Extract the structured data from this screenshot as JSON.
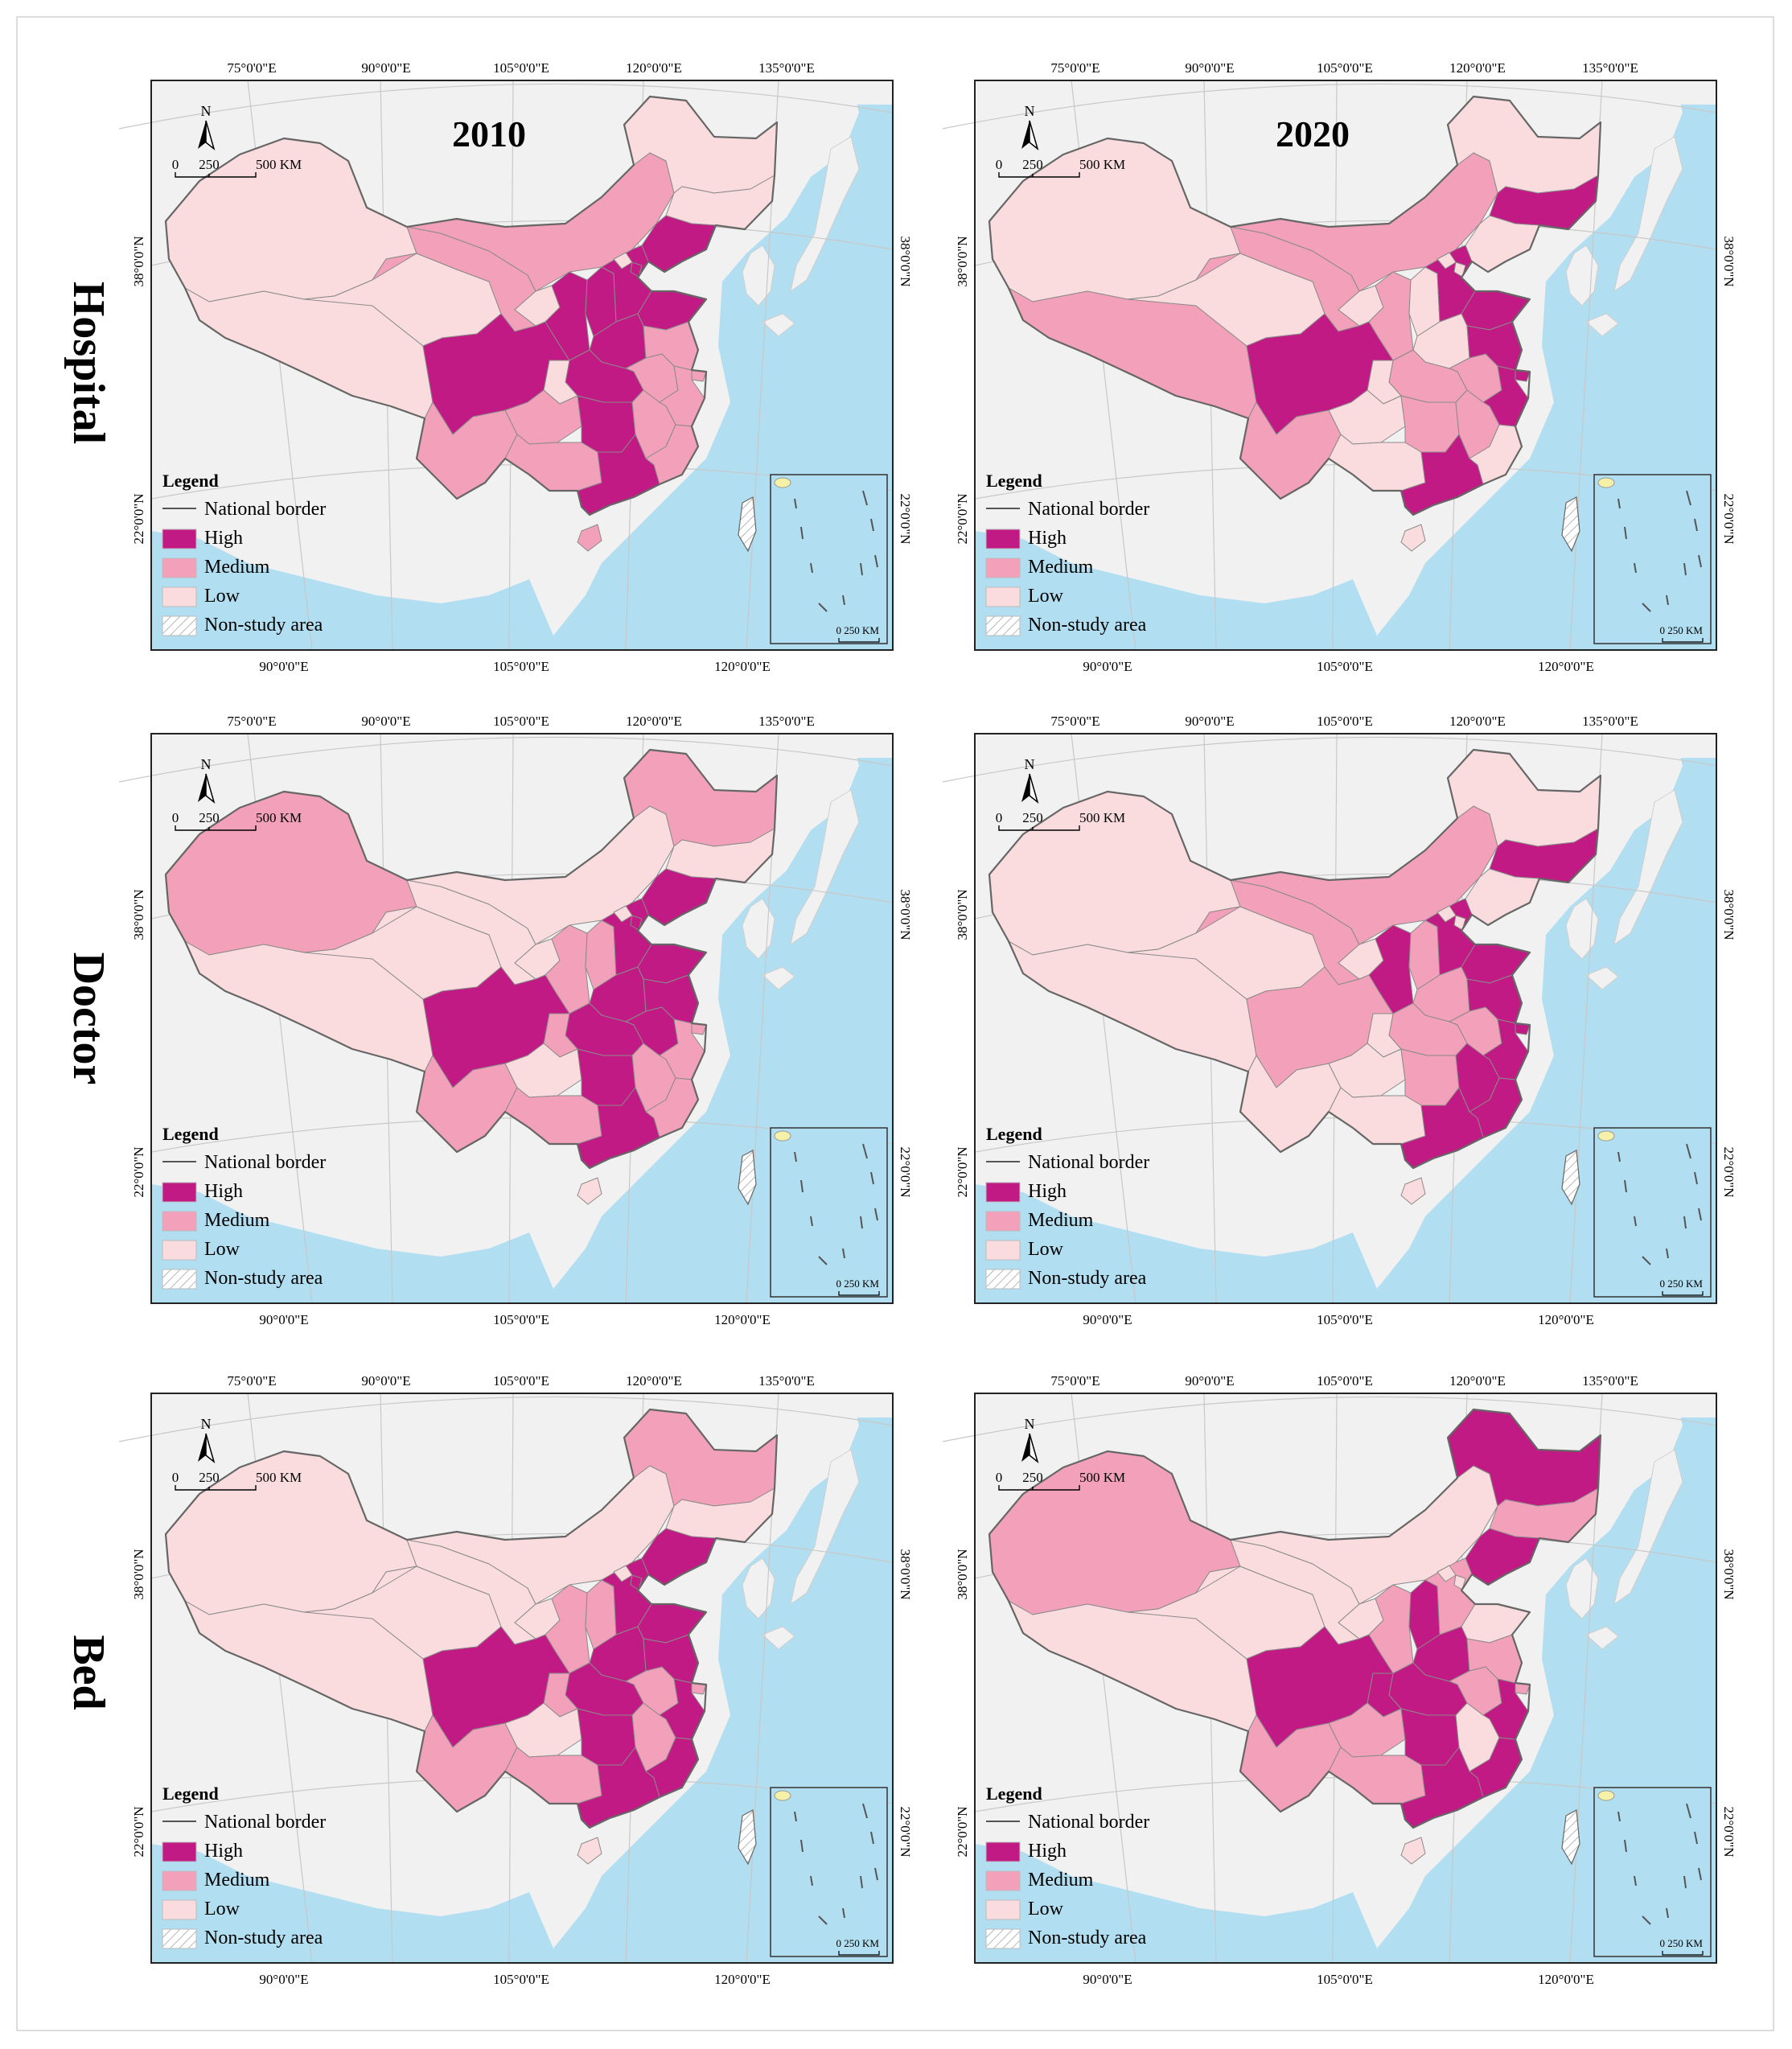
{
  "row_labels": [
    "Hospital",
    "Doctor",
    "Bed"
  ],
  "year_labels": [
    "2010",
    "2020"
  ],
  "axis": {
    "top_lon": [
      "75°0'0\"E",
      "90°0'0\"E",
      "105°0'0\"E",
      "120°0'0\"E",
      "135°0'0\"E"
    ],
    "bottom_lon": [
      "90°0'0\"E",
      "105°0'0\"E",
      "120°0'0\"E"
    ],
    "lat": [
      "38°0'0\"N",
      "22°0'0\"N"
    ]
  },
  "north_label": "N",
  "scale_bar": [
    "0",
    "250",
    "500 KM"
  ],
  "inset_scale": "0 250 KM",
  "legend": {
    "title": "Legend",
    "border": "National border",
    "high": "High",
    "medium": "Medium",
    "low": "Low",
    "nonstudy": "Non-study area"
  },
  "colors": {
    "high": "#c21a84",
    "medium": "#f3a1bb",
    "low": "#fbdcde",
    "sea": "#b1def0",
    "land": "#f1f1f1",
    "border": "#666666"
  },
  "maps": [
    {
      "indicator": "Hospital",
      "year": "2010",
      "levels": {
        "XJ": "low",
        "XZ": "low",
        "QH": "low",
        "GS": "medium",
        "NM": "medium",
        "HLJ": "low",
        "JL": "low",
        "LN": "high",
        "NX": "low",
        "SN": "high",
        "SX": "high",
        "HE": "high",
        "BJ": "low",
        "TJ": "high",
        "SD": "high",
        "HA": "high",
        "SC": "high",
        "CQ": "low",
        "HB": "high",
        "AH": "medium",
        "JS": "medium",
        "ZJ": "medium",
        "SH": "medium",
        "YN": "medium",
        "GZ": "medium",
        "HN": "high",
        "JX": "medium",
        "FJ": "medium",
        "GX": "medium",
        "GD": "high",
        "HI": "medium"
      }
    },
    {
      "indicator": "Hospital",
      "year": "2020",
      "levels": {
        "XJ": "low",
        "XZ": "medium",
        "QH": "low",
        "GS": "medium",
        "NM": "medium",
        "HLJ": "low",
        "JL": "high",
        "LN": "low",
        "NX": "low",
        "SN": "medium",
        "SX": "low",
        "HE": "high",
        "BJ": "low",
        "TJ": "low",
        "SD": "high",
        "HA": "low",
        "SC": "high",
        "CQ": "low",
        "HB": "medium",
        "AH": "medium",
        "JS": "high",
        "ZJ": "high",
        "SH": "high",
        "YN": "medium",
        "GZ": "low",
        "HN": "medium",
        "JX": "medium",
        "FJ": "low",
        "GX": "low",
        "GD": "high",
        "HI": "low"
      }
    },
    {
      "indicator": "Doctor",
      "year": "2010",
      "levels": {
        "XJ": "medium",
        "XZ": "low",
        "QH": "low",
        "GS": "low",
        "NM": "low",
        "HLJ": "medium",
        "JL": "low",
        "LN": "high",
        "NX": "low",
        "SN": "medium",
        "SX": "medium",
        "HE": "high",
        "BJ": "low",
        "TJ": "high",
        "SD": "high",
        "HA": "high",
        "SC": "high",
        "CQ": "medium",
        "HB": "high",
        "AH": "high",
        "JS": "high",
        "ZJ": "medium",
        "SH": "medium",
        "YN": "medium",
        "GZ": "low",
        "HN": "high",
        "JX": "medium",
        "FJ": "medium",
        "GX": "medium",
        "GD": "high",
        "HI": "low"
      }
    },
    {
      "indicator": "Doctor",
      "year": "2020",
      "levels": {
        "XJ": "low",
        "XZ": "low",
        "QH": "low",
        "GS": "medium",
        "NM": "medium",
        "HLJ": "low",
        "JL": "high",
        "LN": "low",
        "NX": "low",
        "SN": "high",
        "SX": "medium",
        "HE": "high",
        "BJ": "low",
        "TJ": "low",
        "SD": "high",
        "HA": "medium",
        "SC": "medium",
        "CQ": "low",
        "HB": "medium",
        "AH": "medium",
        "JS": "high",
        "ZJ": "high",
        "SH": "high",
        "YN": "low",
        "GZ": "low",
        "HN": "medium",
        "JX": "high",
        "FJ": "high",
        "GX": "low",
        "GD": "high",
        "HI": "low"
      }
    },
    {
      "indicator": "Bed",
      "year": "2010",
      "levels": {
        "XJ": "low",
        "XZ": "low",
        "QH": "low",
        "GS": "low",
        "NM": "low",
        "HLJ": "medium",
        "JL": "low",
        "LN": "high",
        "NX": "low",
        "SN": "medium",
        "SX": "medium",
        "HE": "high",
        "BJ": "low",
        "TJ": "high",
        "SD": "high",
        "HA": "high",
        "SC": "high",
        "CQ": "medium",
        "HB": "high",
        "AH": "medium",
        "JS": "high",
        "ZJ": "high",
        "SH": "medium",
        "YN": "medium",
        "GZ": "low",
        "HN": "high",
        "JX": "medium",
        "FJ": "high",
        "GX": "medium",
        "GD": "high",
        "HI": "low"
      }
    },
    {
      "indicator": "Bed",
      "year": "2020",
      "levels": {
        "XJ": "medium",
        "XZ": "low",
        "QH": "low",
        "GS": "low",
        "NM": "low",
        "HLJ": "high",
        "JL": "medium",
        "LN": "high",
        "NX": "low",
        "SN": "medium",
        "SX": "high",
        "HE": "medium",
        "BJ": "low",
        "TJ": "low",
        "SD": "low",
        "HA": "high",
        "SC": "high",
        "CQ": "high",
        "HB": "high",
        "AH": "medium",
        "JS": "medium",
        "ZJ": "high",
        "SH": "medium",
        "YN": "medium",
        "GZ": "medium",
        "HN": "high",
        "JX": "low",
        "FJ": "high",
        "GX": "medium",
        "GD": "high",
        "HI": "low"
      }
    }
  ]
}
